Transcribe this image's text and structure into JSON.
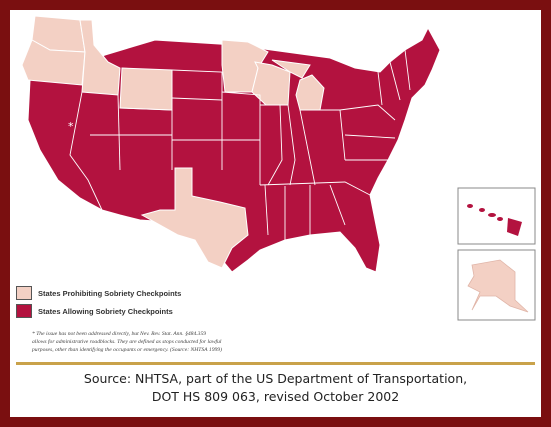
{
  "colors": {
    "border": "#7a0f10",
    "prohibiting": "#f3d0c4",
    "allowing": "#b3123f",
    "state_outline": "#ffffff",
    "divider": "#c9a24a"
  },
  "legend": {
    "items": [
      {
        "label": "States Prohibiting Sobriety Checkpoints",
        "color": "#f3d0c4"
      },
      {
        "label": "States Allowing Sobriety Checkpoints",
        "color": "#b3123f"
      }
    ]
  },
  "footnote": {
    "line1": "* The issue has not been addressed directly, but Nev. Rev. Stat. Ann. §484.359",
    "line2": "allows for administrative roadblocks. They are defined as stops conducted for lawful",
    "line3": "purposes, other than identifying the occupants or emergency. (Source: NHTSA 1999)"
  },
  "map_marker": "*",
  "source": {
    "line1": "Source: NHTSA, part of the US Department of Transportation,",
    "line2": "DOT HS 809 063, revised October 2002"
  },
  "states_prohibiting": [
    "Washington",
    "Oregon",
    "Idaho",
    "Wyoming",
    "Minnesota",
    "Wisconsin",
    "Michigan",
    "Texas",
    "Alaska"
  ],
  "states_allowing_note": "All other states shown, including Hawaii"
}
